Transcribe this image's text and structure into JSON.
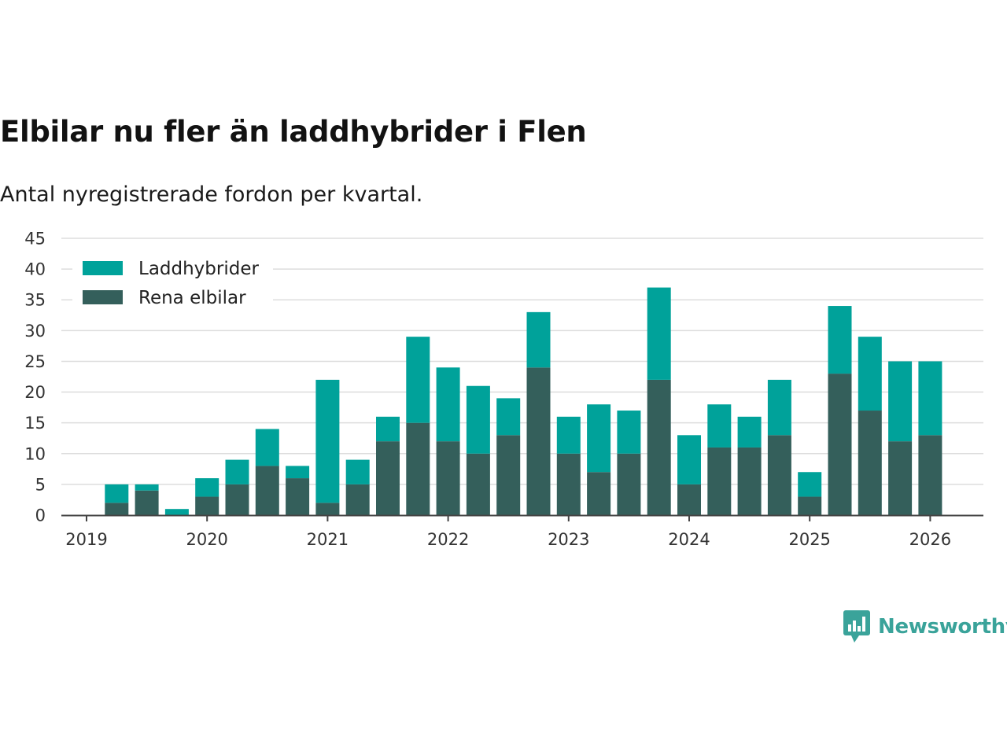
{
  "title": "Elbilar nu fler än laddhybrider i Flen",
  "subtitle": "Antal nyregistrerade fordon per kvartal.",
  "brand": "Newsworthy",
  "colors": {
    "laddhybrider": "#00a29a",
    "elbilar": "#345f5b",
    "grid": "#dddddd",
    "axis": "#444444"
  },
  "chart_data": {
    "type": "bar",
    "stacked": true,
    "title": "Elbilar nu fler än laddhybrider i Flen",
    "subtitle": "Antal nyregistrerade fordon per kvartal.",
    "xlabel": "",
    "ylabel": "",
    "ylim": [
      0,
      45
    ],
    "yticks": [
      0,
      5,
      10,
      15,
      20,
      25,
      30,
      35,
      40,
      45
    ],
    "xticks": [
      "2019",
      "2020",
      "2021",
      "2022",
      "2023",
      "2024",
      "2025",
      "2026"
    ],
    "x_range": [
      2018.8,
      2026.45
    ],
    "legend_position": "top-left",
    "x": [
      2019.25,
      2019.5,
      2019.75,
      2020.0,
      2020.25,
      2020.5,
      2020.75,
      2021.0,
      2021.25,
      2021.5,
      2021.75,
      2022.0,
      2022.25,
      2022.5,
      2022.75,
      2023.0,
      2023.25,
      2023.5,
      2023.75,
      2024.0,
      2024.25,
      2024.5,
      2024.75,
      2025.0,
      2025.25,
      2025.5,
      2025.75,
      2026.0
    ],
    "series": [
      {
        "name": "Rena elbilar",
        "color": "#345f5b",
        "values": [
          2,
          4,
          0,
          3,
          5,
          8,
          6,
          2,
          5,
          12,
          15,
          12,
          10,
          13,
          24,
          10,
          7,
          10,
          22,
          5,
          11,
          11,
          13,
          3,
          23,
          17,
          12,
          13
        ]
      },
      {
        "name": "Laddhybrider",
        "color": "#00a29a",
        "values": [
          3,
          1,
          1,
          3,
          4,
          6,
          2,
          20,
          4,
          4,
          14,
          12,
          11,
          6,
          9,
          6,
          11,
          7,
          15,
          8,
          7,
          5,
          9,
          4,
          11,
          12,
          13,
          12
        ]
      }
    ],
    "legend": [
      "Laddhybrider",
      "Rena elbilar"
    ]
  }
}
